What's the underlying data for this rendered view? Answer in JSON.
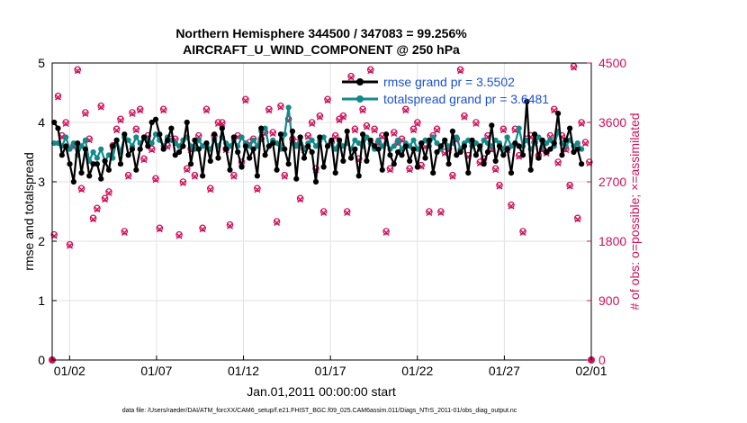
{
  "chart_data": {
    "type": "line",
    "title_line1": "Northern Hemisphere 344500 / 347083 = 99.256%",
    "title_line2": "AIRCRAFT_U_WIND_COMPONENT @ 250 hPa",
    "ylabel": "rmse and totalspread",
    "y2label": "# of obs: o=possible; ×=assimilated",
    "xlabel": "Jan.01,2011 00:00:00 start",
    "footnote": "data file: /Users/raeder/DAI/ATM_forcXX/CAM6_setup/f.e21.FHIST_BGC.f09_025.CAM6assim.011/Diags_NTrS_2011-01/obs_diag_output.nc",
    "xlim": [
      1,
      32
    ],
    "ylim": [
      0,
      5
    ],
    "y2lim": [
      0,
      4500
    ],
    "x_ticks": [
      2,
      7,
      12,
      17,
      22,
      27,
      32
    ],
    "x_tick_labels": [
      "01/02",
      "01/07",
      "01/12",
      "01/17",
      "01/22",
      "01/27",
      "02/01"
    ],
    "y_ticks": [
      "0",
      "1",
      "2",
      "3",
      "4",
      "5"
    ],
    "y2_ticks": [
      "0",
      "900",
      "1800",
      "2700",
      "3600",
      "4500"
    ],
    "grid": true,
    "legend_position": "top-right",
    "colors": {
      "rmse": "#000000",
      "spread": "#138a8a",
      "obs": "#d0115a",
      "legend_text": "#1a4fd6"
    },
    "series": [
      {
        "name": "rmse",
        "legend": "rmse grand pr = 3.5502",
        "values": [
          4.0,
          3.9,
          3.45,
          3.6,
          3.3,
          3.0,
          3.65,
          3.15,
          3.55,
          3.1,
          3.3,
          3.3,
          3.05,
          3.35,
          3.2,
          3.6,
          3.7,
          3.3,
          3.8,
          3.45,
          3.55,
          3.2,
          3.55,
          3.75,
          3.6,
          4.0,
          4.05,
          3.8,
          3.55,
          3.7,
          3.9,
          3.45,
          3.5,
          3.6,
          4.0,
          3.3,
          3.7,
          3.55,
          3.1,
          3.65,
          3.35,
          3.8,
          3.4,
          3.9,
          3.55,
          3.2,
          3.75,
          3.5,
          3.25,
          3.6,
          3.4,
          3.55,
          3.1,
          3.9,
          3.45,
          3.6,
          3.65,
          3.2,
          3.8,
          3.55,
          3.3,
          3.85,
          3.05,
          3.75,
          3.4,
          3.6,
          3.5,
          3.0,
          3.75,
          3.25,
          3.6,
          3.7,
          3.15,
          3.7,
          3.35,
          3.85,
          3.4,
          3.55,
          3.1,
          3.8,
          3.35,
          3.7,
          3.6,
          3.55,
          3.2,
          3.8,
          3.45,
          3.3,
          3.5,
          3.45,
          3.6,
          3.35,
          3.55,
          3.25,
          3.65,
          3.4,
          3.7,
          3.15,
          3.5,
          3.6,
          3.7,
          3.3,
          3.85,
          3.45,
          3.5,
          3.6,
          3.15,
          3.7,
          3.45,
          3.6,
          3.3,
          3.5,
          3.95,
          3.35,
          3.6,
          3.45,
          3.55,
          3.15,
          3.65,
          3.6,
          3.45,
          4.35,
          3.2,
          3.8,
          3.4,
          3.7,
          3.5,
          3.55,
          3.65,
          4.15,
          3.45,
          3.7,
          3.9,
          3.5,
          3.55,
          3.3
        ]
      },
      {
        "name": "totalspread",
        "legend": "totalspread grand pr = 3.6481",
        "values": [
          3.65,
          3.65,
          3.6,
          3.75,
          3.55,
          3.65,
          3.45,
          3.6,
          3.7,
          3.35,
          3.5,
          3.4,
          3.55,
          3.35,
          3.45,
          3.4,
          3.7,
          3.5,
          3.75,
          3.7,
          3.6,
          3.75,
          3.65,
          3.75,
          3.7,
          3.65,
          3.8,
          3.7,
          3.6,
          3.75,
          3.7,
          3.65,
          3.6,
          3.7,
          3.75,
          3.6,
          3.55,
          3.7,
          3.6,
          3.65,
          3.55,
          3.7,
          3.6,
          3.75,
          3.65,
          3.6,
          3.7,
          3.6,
          3.75,
          3.65,
          3.6,
          3.7,
          3.6,
          3.85,
          3.9,
          3.6,
          3.7,
          3.65,
          3.55,
          3.8,
          4.25,
          3.65,
          3.6,
          3.75,
          3.55,
          3.65,
          3.7,
          3.6,
          3.7,
          3.75,
          3.6,
          3.65,
          3.55,
          3.7,
          3.6,
          3.65,
          3.55,
          3.7,
          3.65,
          3.6,
          3.75,
          3.65,
          3.55,
          3.7,
          3.6,
          3.65,
          3.55,
          3.6,
          3.7,
          3.55,
          3.65,
          3.6,
          3.7,
          3.55,
          3.65,
          3.7,
          3.6,
          3.75,
          3.65,
          3.55,
          3.7,
          3.6,
          3.65,
          3.75,
          3.55,
          3.65,
          3.7,
          3.6,
          3.65,
          3.55,
          3.7,
          3.65,
          3.6,
          3.7,
          3.65,
          3.55,
          3.75,
          3.6,
          3.65,
          3.9,
          3.6,
          3.7,
          3.55,
          3.65,
          3.75,
          3.6,
          3.65,
          3.7,
          3.6,
          3.85,
          3.65,
          3.6,
          3.7,
          3.6,
          3.65,
          3.55
        ]
      },
      {
        "name": "obs_possible",
        "axis": "right",
        "values": [
          1900,
          4000,
          3400,
          3600,
          1750,
          3250,
          4400,
          2600,
          3750,
          3350,
          2150,
          2300,
          3850,
          2450,
          2550,
          3250,
          3500,
          3650,
          1950,
          2800,
          3750,
          3500,
          3800,
          3050,
          3400,
          3200,
          2750,
          2000,
          3800,
          3250,
          3350,
          3350,
          1900,
          2700,
          2900,
          3200,
          2800,
          3400,
          2000,
          3800,
          2600,
          3400,
          3600,
          3600,
          3200,
          2050,
          2800,
          3400,
          3000,
          3950,
          3300,
          3350,
          2600,
          3350,
          3450,
          3800,
          3450,
          2100,
          3850,
          2800,
          3650,
          3350,
          3300,
          2450,
          3200,
          3400,
          3600,
          2900,
          3700,
          2250,
          3950,
          3300,
          3400,
          3650,
          3700,
          2250,
          4300,
          3500,
          3050,
          3800,
          3550,
          4400,
          3500,
          3300,
          3400,
          1950,
          2900,
          3450,
          3300,
          3350,
          3800,
          2900,
          3500,
          3600,
          2950,
          3250,
          2250,
          3400,
          3500,
          2250,
          3150,
          3200,
          2800,
          3350,
          4400,
          3700,
          3100,
          3300,
          3600,
          3000,
          3050,
          3400,
          3200,
          2900,
          2650,
          3500,
          3200,
          2350,
          3500,
          3100,
          1950,
          3350,
          3400,
          3300,
          3100,
          3200,
          3150,
          3400,
          3800,
          3000,
          3400,
          3200,
          2650,
          4450,
          2150,
          3600,
          3300,
          3000
        ]
      },
      {
        "name": "obs_assimilated",
        "axis": "right",
        "values": [
          1880,
          3980,
          3380,
          3580,
          1730,
          3230,
          4380,
          2580,
          3730,
          3330,
          2130,
          2280,
          3830,
          2430,
          2530,
          3230,
          3480,
          3630,
          1930,
          2780,
          3730,
          3480,
          3780,
          3030,
          3380,
          3180,
          2730,
          1980,
          3780,
          3230,
          3330,
          3330,
          1880,
          2680,
          2880,
          3180,
          2780,
          3380,
          1980,
          3780,
          2580,
          3380,
          3580,
          3580,
          3180,
          2030,
          2780,
          3380,
          2980,
          3930,
          3280,
          3330,
          2580,
          3330,
          3430,
          3780,
          3430,
          2080,
          3830,
          2780,
          3630,
          3330,
          3280,
          2430,
          3180,
          3380,
          3580,
          2880,
          3680,
          2230,
          3930,
          3280,
          3380,
          3630,
          3680,
          2230,
          4280,
          3480,
          3030,
          3780,
          3530,
          4380,
          3480,
          3280,
          3380,
          1930,
          2880,
          3430,
          3280,
          3330,
          3780,
          2880,
          3480,
          3580,
          2930,
          3230,
          2230,
          3380,
          3480,
          2230,
          3130,
          3180,
          2780,
          3330,
          4380,
          3680,
          3080,
          3280,
          3580,
          2980,
          3030,
          3380,
          3180,
          2880,
          2630,
          3480,
          3180,
          2330,
          3480,
          3080,
          1930,
          3330,
          3380,
          3280,
          3080,
          3180,
          3130,
          3380,
          3780,
          2980,
          3380,
          3180,
          2630,
          4430,
          2130,
          3580,
          3280,
          2980
        ]
      }
    ]
  }
}
